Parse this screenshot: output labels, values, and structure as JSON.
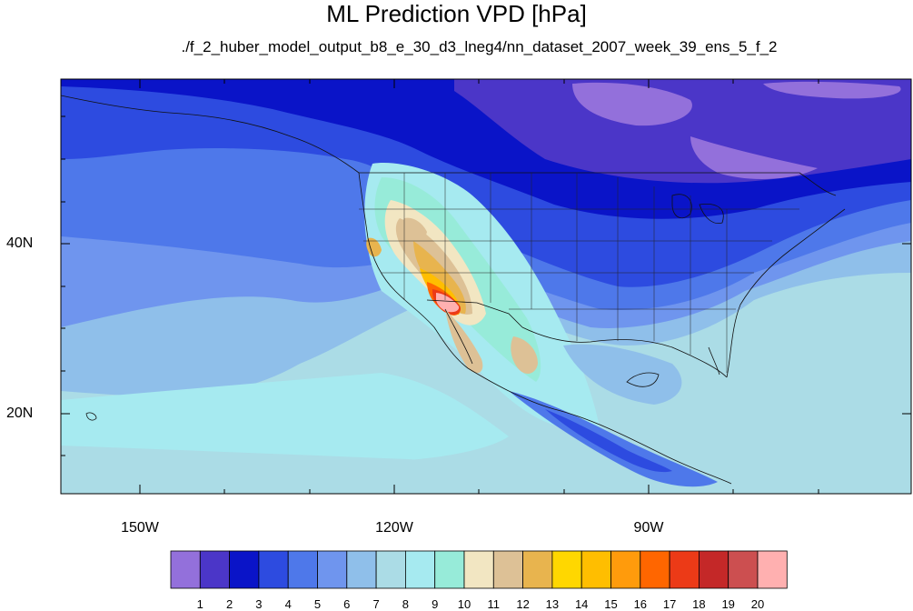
{
  "title": "ML Prediction VPD [hPa]",
  "subtitle": "./f_2_huber_model_output_b8_e_30_d3_lneg4/nn_dataset_2007_week_39_ens_5_f_2",
  "axes": {
    "lat_labels": [
      "40N",
      "20N"
    ],
    "lon_labels": [
      "150W",
      "120W",
      "90W"
    ]
  },
  "colorbar": {
    "labels": [
      "1",
      "2",
      "3",
      "4",
      "5",
      "6",
      "7",
      "8",
      "9",
      "10",
      "11",
      "12",
      "13",
      "14",
      "15",
      "16",
      "17",
      "18",
      "19",
      "20"
    ],
    "colors": [
      "#9370db",
      "#4b36c8",
      "#0a14c8",
      "#2d4be0",
      "#4e78ea",
      "#6f95ee",
      "#8fbfea",
      "#abdce6",
      "#a6eaf0",
      "#97ebd9",
      "#f2e6c2",
      "#ddc196",
      "#e8b44e",
      "#ffd700",
      "#ffbe00",
      "#ff9b0c",
      "#ff6600",
      "#ec3a17",
      "#c42828",
      "#cc4f50",
      "#ffb0b0"
    ]
  },
  "chart_data": {
    "type": "heatmap",
    "title": "ML Prediction VPD [hPa]",
    "subtitle": "./f_2_huber_model_output_b8_e_30_d3_lneg4/nn_dataset_2007_week_39_ens_5_f_2",
    "variable_units": "hPa",
    "lon_range": [
      -160,
      -60
    ],
    "lat_range": [
      11,
      60
    ],
    "x_ticks": [
      "150W",
      "120W",
      "90W"
    ],
    "y_ticks": [
      "40N",
      "20N"
    ],
    "colorbar_levels": [
      1,
      2,
      3,
      4,
      5,
      6,
      7,
      8,
      9,
      10,
      11,
      12,
      13,
      14,
      15,
      16,
      17,
      18,
      19,
      20
    ],
    "features": {
      "peak": {
        "region": "southwestern desert",
        "value_band": "> 20"
      },
      "high_band": {
        "region": "interior west and central valley",
        "value_range": [
          11,
          18
        ]
      },
      "low_band": {
        "region": "northern continent",
        "value_range": [
          1,
          4
        ]
      }
    }
  }
}
